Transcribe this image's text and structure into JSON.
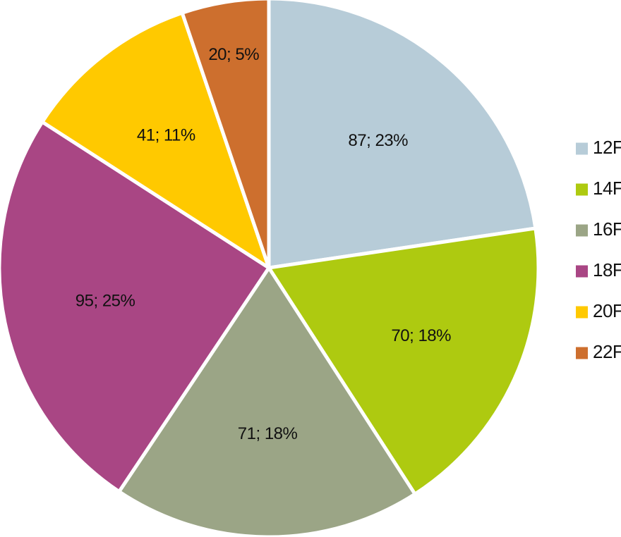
{
  "chart_data": {
    "type": "pie",
    "title": "",
    "start_angle_deg": 0,
    "direction": "clockwise",
    "legend_position": "right",
    "slices": [
      {
        "category": "12F",
        "value": 87,
        "percent": "23%",
        "label": "87; 23%",
        "color": "#B7CCD8"
      },
      {
        "category": "14F",
        "value": 70,
        "percent": "18%",
        "label": "70; 18%",
        "color": "#AECA10"
      },
      {
        "category": "16F",
        "value": 71,
        "percent": "18%",
        "label": "71; 18%",
        "color": "#9BA586"
      },
      {
        "category": "18F",
        "value": 95,
        "percent": "25%",
        "label": "95; 25%",
        "color": "#A94684"
      },
      {
        "category": "20F",
        "value": 41,
        "percent": "11%",
        "label": "41; 11%",
        "color": "#FFC900"
      },
      {
        "category": "22F",
        "value": 20,
        "percent": "5%",
        "label": "20; 5%",
        "color": "#CD6F2E"
      }
    ]
  }
}
